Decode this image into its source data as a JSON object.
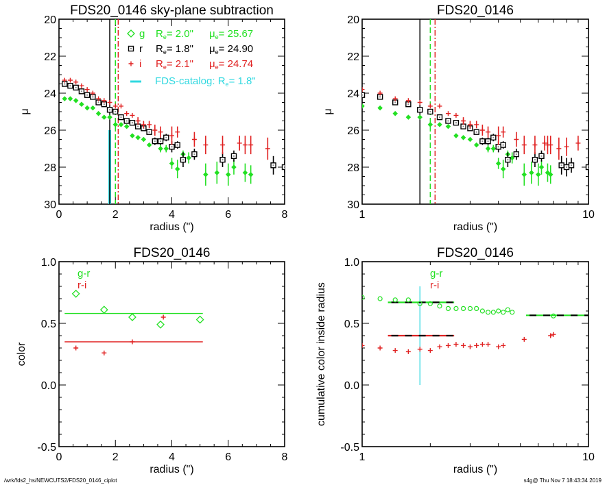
{
  "footer": {
    "left": "/wrk/fds2_hs/NEWCUTS2/FDS20_0146_ciplot",
    "right": "s4g@  Thu Nov  7 18:43:34 2019"
  },
  "colors": {
    "g": "#22e022",
    "r": "#000000",
    "i": "#e02020",
    "catalog": "#30d8e0"
  },
  "chart_data": [
    {
      "id": "profile-linear",
      "type": "scatter",
      "title": "FDS20_0146 sky-plane subtraction",
      "xlabel": "radius (\")",
      "ylabel": "μ",
      "xscale": "linear",
      "xlim": [
        0,
        8
      ],
      "ylim": [
        30,
        20
      ],
      "xticks": [
        0,
        2,
        4,
        6,
        8
      ],
      "xtick_labels": [
        "0",
        "2",
        "4",
        "6",
        "8"
      ],
      "yticks": [
        20,
        22,
        24,
        26,
        28,
        30
      ],
      "ytick_labels": [
        "20",
        "22",
        "24",
        "26",
        "28",
        "30"
      ],
      "legend": {
        "placement": "top-right",
        "entries": [
          {
            "band": "g",
            "symbol": "diamond",
            "label": "g",
            "re_label": "R",
            "re_sub": "e",
            "re_value": "=   2.0\"",
            "mu_label": "μ",
            "mu_sub": "e",
            "mu_value": "= 25.67"
          },
          {
            "band": "r",
            "symbol": "square",
            "label": "r",
            "re_label": "R",
            "re_sub": "e",
            "re_value": "=   1.8\"",
            "mu_label": "μ",
            "mu_sub": "e",
            "mu_value": "= 24.90"
          },
          {
            "band": "i",
            "symbol": "plus",
            "label": "i",
            "re_label": "R",
            "re_sub": "e",
            "re_value": "=   2.1\"",
            "mu_label": "μ",
            "mu_sub": "e",
            "mu_value": "= 24.74"
          }
        ],
        "catalog": {
          "label": "FDS-catalog: R",
          "sub": "e",
          "value": "=   1.8\""
        }
      },
      "vlines": [
        {
          "band": "r",
          "x": 1.8,
          "style": "solid"
        },
        {
          "band": "g",
          "x": 2.0,
          "style": "dash"
        },
        {
          "band": "i",
          "x": 2.1,
          "style": "dashdot"
        }
      ],
      "catalog_bar": {
        "x": 1.8,
        "y_from": 30,
        "y_to": 26
      },
      "series": [
        {
          "name": "g",
          "symbol": "diamond-filled",
          "x": [
            0.2,
            0.4,
            0.6,
            0.8,
            1.0,
            1.2,
            1.4,
            1.6,
            1.8,
            2.0,
            2.2,
            2.4,
            2.6,
            2.8,
            3.0,
            3.2,
            3.4,
            3.6,
            3.8,
            4.0,
            4.2,
            4.4,
            4.6,
            5.2,
            5.6,
            6.0,
            6.2,
            6.6,
            6.8
          ],
          "y": [
            24.3,
            24.3,
            24.4,
            24.6,
            24.8,
            24.8,
            25.1,
            25.3,
            25.3,
            25.7,
            25.7,
            25.8,
            26.3,
            26.4,
            26.5,
            26.8,
            26.6,
            27.0,
            27.0,
            27.8,
            28.1,
            27.3,
            27.5,
            28.4,
            28.3,
            28.4,
            28.0,
            28.3,
            28.4
          ],
          "err": [
            0,
            0,
            0,
            0,
            0,
            0,
            0,
            0,
            0,
            0,
            0,
            0,
            0,
            0,
            0,
            0.1,
            0.1,
            0.2,
            0.2,
            0.3,
            0.5,
            0.2,
            0.3,
            0.6,
            0.6,
            0.6,
            0.4,
            0.5,
            0.5
          ]
        },
        {
          "name": "r",
          "symbol": "square",
          "x": [
            0.2,
            0.4,
            0.6,
            0.8,
            1.0,
            1.2,
            1.4,
            1.6,
            1.8,
            2.0,
            2.2,
            2.4,
            2.6,
            2.8,
            3.0,
            3.2,
            3.4,
            3.6,
            3.8,
            4.0,
            4.2,
            4.4,
            4.8,
            5.8,
            6.2,
            7.6,
            8.0
          ],
          "y": [
            23.5,
            23.6,
            23.7,
            23.9,
            24.1,
            24.2,
            24.5,
            24.6,
            24.9,
            25.0,
            25.3,
            25.5,
            25.6,
            25.8,
            25.9,
            26.1,
            26.6,
            26.6,
            26.4,
            26.9,
            26.8,
            27.6,
            27.3,
            27.6,
            27.4,
            27.9,
            28.0
          ],
          "err": [
            0,
            0,
            0,
            0,
            0,
            0,
            0,
            0,
            0,
            0,
            0,
            0,
            0,
            0,
            0,
            0.1,
            0.2,
            0.2,
            0.2,
            0.3,
            0.2,
            0.4,
            0.3,
            0.4,
            0.3,
            0.5,
            0.3
          ]
        },
        {
          "name": "i",
          "symbol": "plus",
          "x": [
            0.2,
            0.4,
            0.6,
            0.8,
            1.0,
            1.2,
            1.4,
            1.6,
            1.8,
            2.0,
            2.2,
            2.4,
            2.6,
            2.8,
            3.0,
            3.2,
            3.4,
            3.6,
            4.0,
            4.2,
            4.8,
            5.2,
            5.8,
            6.4,
            6.6,
            6.8,
            7.4
          ],
          "y": [
            23.3,
            23.3,
            23.4,
            23.6,
            23.8,
            24.0,
            24.3,
            24.4,
            24.5,
            24.7,
            24.7,
            25.1,
            25.2,
            25.5,
            25.7,
            25.7,
            26.0,
            26.1,
            26.3,
            26.1,
            26.5,
            26.8,
            26.8,
            26.7,
            26.8,
            26.8,
            27.0
          ],
          "err": [
            0,
            0,
            0,
            0,
            0,
            0,
            0,
            0,
            0,
            0,
            0,
            0,
            0,
            0.2,
            0.2,
            0.2,
            0.3,
            0.3,
            0.5,
            0.3,
            0.4,
            0.5,
            0.5,
            0.4,
            0.5,
            0.5,
            0.6
          ]
        }
      ]
    },
    {
      "id": "profile-log",
      "type": "scatter",
      "title": "FDS20_0146",
      "xlabel": "radius (\")",
      "ylabel": "μ",
      "xscale": "log",
      "xlim": [
        1,
        10
      ],
      "ylim": [
        30,
        20
      ],
      "xtick_labels": [
        "1",
        "10"
      ],
      "yticks": [
        20,
        22,
        24,
        26,
        28,
        30
      ],
      "ytick_labels": [
        "20",
        "22",
        "24",
        "26",
        "28",
        "30"
      ],
      "vlines": [
        {
          "band": "r",
          "x": 1.8,
          "style": "solid"
        },
        {
          "band": "g",
          "x": 2.0,
          "style": "dash"
        },
        {
          "band": "i",
          "x": 2.1,
          "style": "dashdot"
        }
      ],
      "series": [
        {
          "name": "g",
          "symbol": "diamond-filled",
          "x": [
            1.0,
            1.2,
            1.4,
            1.6,
            1.8,
            2.0,
            2.2,
            2.4,
            2.6,
            2.8,
            3.0,
            3.2,
            3.4,
            3.6,
            3.8,
            4.0,
            4.2,
            4.4,
            4.6,
            5.2,
            5.6,
            6.0,
            6.2,
            6.6,
            6.8
          ],
          "y": [
            24.7,
            24.8,
            25.1,
            25.3,
            25.3,
            25.7,
            25.7,
            25.8,
            26.3,
            26.4,
            26.5,
            26.8,
            26.6,
            27.0,
            27.0,
            27.8,
            28.1,
            27.3,
            27.5,
            28.4,
            28.3,
            28.4,
            28.0,
            28.3,
            28.4
          ],
          "err": [
            0,
            0,
            0,
            0,
            0,
            0,
            0,
            0,
            0,
            0,
            0,
            0.1,
            0.1,
            0.2,
            0.2,
            0.3,
            0.5,
            0.2,
            0.3,
            0.6,
            0.6,
            0.6,
            0.4,
            0.5,
            0.5
          ]
        },
        {
          "name": "r",
          "symbol": "square",
          "x": [
            1.0,
            1.2,
            1.4,
            1.6,
            1.8,
            2.0,
            2.2,
            2.4,
            2.6,
            2.8,
            3.0,
            3.2,
            3.4,
            3.6,
            3.8,
            4.0,
            4.2,
            4.4,
            4.8,
            5.8,
            6.2,
            7.6,
            8.0,
            8.4,
            10.0
          ],
          "y": [
            24.1,
            24.2,
            24.5,
            24.6,
            24.9,
            25.0,
            25.3,
            25.5,
            25.6,
            25.8,
            25.9,
            26.1,
            26.6,
            26.6,
            26.4,
            26.9,
            26.8,
            27.6,
            27.3,
            27.6,
            27.4,
            27.9,
            28.0,
            27.9,
            28.0
          ],
          "err": [
            0,
            0,
            0,
            0,
            0,
            0,
            0,
            0,
            0,
            0,
            0,
            0.1,
            0.2,
            0.2,
            0.2,
            0.3,
            0.2,
            0.4,
            0.3,
            0.4,
            0.3,
            0.5,
            0.5,
            0.4,
            0.4
          ]
        },
        {
          "name": "i",
          "symbol": "plus",
          "x": [
            1.0,
            1.2,
            1.4,
            1.6,
            1.8,
            2.0,
            2.2,
            2.4,
            2.6,
            2.8,
            3.0,
            3.2,
            3.4,
            3.6,
            4.0,
            4.2,
            4.8,
            5.2,
            5.8,
            6.4,
            6.6,
            6.8,
            7.4,
            8.0,
            9.0
          ],
          "y": [
            23.8,
            24.0,
            24.3,
            24.4,
            24.5,
            24.7,
            24.7,
            25.1,
            25.2,
            25.5,
            25.7,
            25.7,
            26.0,
            26.1,
            26.3,
            26.1,
            26.5,
            26.8,
            26.8,
            26.7,
            26.8,
            26.8,
            27.0,
            26.9,
            26.7
          ],
          "err": [
            0,
            0,
            0,
            0,
            0,
            0,
            0,
            0,
            0,
            0.2,
            0.2,
            0.2,
            0.3,
            0.3,
            0.5,
            0.3,
            0.4,
            0.5,
            0.5,
            0.4,
            0.5,
            0.5,
            0.6,
            0.5,
            0.4
          ]
        }
      ]
    },
    {
      "id": "color-linear",
      "type": "scatter",
      "title": "FDS20_0146",
      "xlabel": "radius (\")",
      "ylabel": "color",
      "xscale": "linear",
      "xlim": [
        0,
        8
      ],
      "ylim": [
        -0.5,
        1.0
      ],
      "xticks": [
        0,
        2,
        4,
        6,
        8
      ],
      "xtick_labels": [
        "0",
        "2",
        "4",
        "6",
        "8"
      ],
      "yticks": [
        -0.5,
        0.0,
        0.5,
        1.0
      ],
      "ytick_labels": [
        "-0.5",
        "0.0",
        "0.5",
        "1.0"
      ],
      "legend": {
        "placement": "top-left",
        "entries": [
          {
            "band": "g",
            "label": "g-r"
          },
          {
            "band": "i",
            "label": "r-i"
          }
        ]
      },
      "hlines": [
        {
          "band": "g",
          "y": 0.58,
          "x_from": 0.2,
          "x_to": 5.1
        },
        {
          "band": "i",
          "y": 0.35,
          "x_from": 0.2,
          "x_to": 5.1
        }
      ],
      "series": [
        {
          "name": "g-r",
          "band": "g",
          "symbol": "diamond-open",
          "x": [
            0.6,
            1.6,
            2.6,
            3.6,
            5.0
          ],
          "y": [
            0.74,
            0.61,
            0.55,
            0.49,
            0.53
          ]
        },
        {
          "name": "r-i",
          "band": "i",
          "symbol": "plus",
          "x": [
            0.6,
            1.6,
            2.6,
            3.7
          ],
          "y": [
            0.3,
            0.26,
            0.35,
            0.55
          ]
        }
      ]
    },
    {
      "id": "color-cumulative-log",
      "type": "scatter",
      "title": "FDS20_0146",
      "xlabel": "radius (\")",
      "ylabel": "cumulative color inside radius",
      "xscale": "log",
      "xlim": [
        1,
        10
      ],
      "ylim": [
        -0.5,
        1.0
      ],
      "xtick_labels": [
        "1",
        "10"
      ],
      "yticks": [
        -0.5,
        0.0,
        0.5,
        1.0
      ],
      "ytick_labels": [
        "-0.5",
        "0.0",
        "0.5",
        "1.0"
      ],
      "legend": {
        "placement": "top-center",
        "entries": [
          {
            "band": "g",
            "label": "g-r"
          },
          {
            "band": "i",
            "label": "r-i"
          }
        ]
      },
      "catalog_line": {
        "x": 1.8,
        "y_from": 0.0,
        "y_to": 0.8
      },
      "hlines": [
        {
          "band": "g",
          "y": 0.67,
          "x_from": 1.3,
          "x_to": 2.55
        },
        {
          "band": "i",
          "y": 0.4,
          "x_from": 1.3,
          "x_to": 2.55
        },
        {
          "band": "g",
          "y": 0.565,
          "x_from": 5.3,
          "x_to": 10.0
        }
      ],
      "series": [
        {
          "name": "g-r",
          "band": "g",
          "symbol": "circle-open",
          "x": [
            1.0,
            1.2,
            1.4,
            1.6,
            1.8,
            2.0,
            2.2,
            2.4,
            2.6,
            2.8,
            3.0,
            3.2,
            3.4,
            3.6,
            3.8,
            4.0,
            4.2,
            4.4,
            4.6,
            7.0
          ],
          "y": [
            0.71,
            0.7,
            0.69,
            0.69,
            0.66,
            0.66,
            0.64,
            0.62,
            0.62,
            0.62,
            0.62,
            0.62,
            0.6,
            0.59,
            0.59,
            0.6,
            0.59,
            0.61,
            0.59,
            0.56
          ]
        },
        {
          "name": "r-i",
          "band": "i",
          "symbol": "plus",
          "x": [
            1.0,
            1.2,
            1.4,
            1.6,
            1.8,
            2.0,
            2.2,
            2.4,
            2.6,
            2.8,
            3.0,
            3.2,
            3.4,
            3.6,
            4.0,
            4.2,
            5.2,
            6.8,
            7.0
          ],
          "y": [
            0.32,
            0.3,
            0.28,
            0.27,
            0.29,
            0.28,
            0.31,
            0.32,
            0.33,
            0.32,
            0.31,
            0.32,
            0.33,
            0.33,
            0.31,
            0.32,
            0.37,
            0.4,
            0.41
          ]
        }
      ]
    }
  ]
}
